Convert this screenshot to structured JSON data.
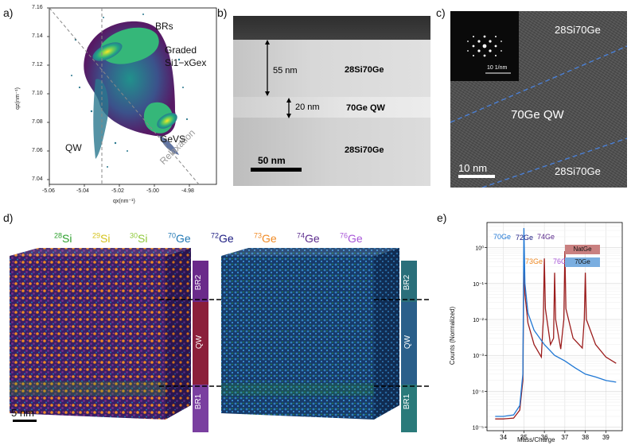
{
  "panels": {
    "a": {
      "label": "a)",
      "annotations": {
        "brs": "BRs",
        "graded_line1": "Graded",
        "graded_line2": "Si1−xGex",
        "qw": "QW",
        "gevs": "GeVS",
        "relaxation": "Relaxation"
      },
      "xlabel": "qx(nm⁻¹)",
      "ylabel": "qz(nm⁻¹)",
      "xticks": [
        "-5.06",
        "-5.04",
        "-5.02",
        "-5.00",
        "-4.98"
      ],
      "yticks": [
        "7.16",
        "7.14",
        "7.12",
        "7.10",
        "7.08",
        "7.06",
        "7.04"
      ]
    },
    "b": {
      "label": "b)",
      "dim_55": "55 nm",
      "dim_20": "20 nm",
      "layer_top": "28Si70Ge",
      "layer_qw": "70Ge QW",
      "layer_bottom": "28Si70Ge",
      "scale": "50 nm"
    },
    "c": {
      "label": "c)",
      "fft_scale": "10 1/nm",
      "layer_top": "28Si70Ge",
      "layer_qw": "70Ge QW",
      "layer_bottom": "28Si70Ge",
      "scale": "10 nm"
    },
    "d": {
      "label": "d)",
      "isotopes": [
        {
          "mass": "28",
          "el": "Si",
          "color": "#2ca02c"
        },
        {
          "mass": "29",
          "el": "Si",
          "color": "#d4c21a"
        },
        {
          "mass": "30",
          "el": "Si",
          "color": "#8fc83a"
        },
        {
          "mass": "70",
          "el": "Ge",
          "color": "#1f77b4"
        },
        {
          "mass": "72",
          "el": "Ge",
          "color": "#1a1a80"
        },
        {
          "mass": "73",
          "el": "Ge",
          "color": "#f08a24"
        },
        {
          "mass": "74",
          "el": "Ge",
          "color": "#5a2a8c"
        },
        {
          "mass": "76",
          "el": "Ge",
          "color": "#a855d8"
        }
      ],
      "bar_labels": [
        "BR2",
        "QW",
        "BR1"
      ],
      "scale": "5 nm"
    },
    "e": {
      "label": "e)",
      "peak_labels": {
        "g70": "70Ge",
        "g72": "72Ge",
        "g73": "73Ge",
        "g74": "74Ge",
        "g76": "76Ge"
      },
      "legend": [
        {
          "name": "NatGe",
          "color": "#9b1c1c"
        },
        {
          "name": "70Ge",
          "color": "#1f77d4"
        }
      ],
      "xlabel": "Mass/Charge",
      "ylabel": "Counts (Normalized)"
    }
  },
  "chart_data": {
    "type": "line",
    "xlabel": "Mass/Charge",
    "ylabel": "Counts (Normalized)",
    "xlim": [
      33.2,
      39.8
    ],
    "ylim": [
      8e-06,
      5
    ],
    "yscale": "log",
    "xticks": [
      34,
      35,
      36,
      37,
      38,
      39
    ],
    "yticks": [
      "10⁻⁵",
      "10⁻⁴",
      "10⁻³",
      "10⁻²",
      "10⁻¹",
      "10⁰"
    ],
    "grid": true,
    "legend_position": "top-right",
    "series": [
      {
        "name": "NatGe",
        "color": "#9b1c1c",
        "x": [
          33.6,
          34.0,
          34.5,
          34.8,
          34.95,
          35.0,
          35.05,
          35.2,
          35.5,
          35.85,
          35.95,
          36.0,
          36.05,
          36.3,
          36.45,
          36.5,
          36.55,
          36.8,
          36.95,
          37.0,
          37.05,
          37.4,
          37.85,
          37.95,
          38.0,
          38.05,
          38.5,
          39.0,
          39.5
        ],
        "y": [
          1.7e-05,
          1.7e-05,
          1.8e-05,
          3e-05,
          0.0002,
          0.55,
          0.05,
          0.008,
          0.002,
          0.0009,
          0.01,
          0.5,
          0.02,
          0.002,
          0.003,
          0.2,
          0.01,
          0.0015,
          0.01,
          0.8,
          0.02,
          0.003,
          0.0016,
          0.01,
          0.2,
          0.01,
          0.002,
          0.0009,
          0.0006
        ]
      },
      {
        "name": "70Ge",
        "color": "#1f77d4",
        "x": [
          33.6,
          34.0,
          34.5,
          34.8,
          34.95,
          35.0,
          35.05,
          35.2,
          35.5,
          36.0,
          36.5,
          37.0,
          37.5,
          38.0,
          38.5,
          39.0,
          39.5
        ],
        "y": [
          2e-05,
          2e-05,
          2.2e-05,
          4e-05,
          0.0003,
          3.5,
          0.1,
          0.015,
          0.005,
          0.002,
          0.001,
          0.0007,
          0.00045,
          0.0003,
          0.00025,
          0.0002,
          0.00018
        ]
      }
    ]
  }
}
